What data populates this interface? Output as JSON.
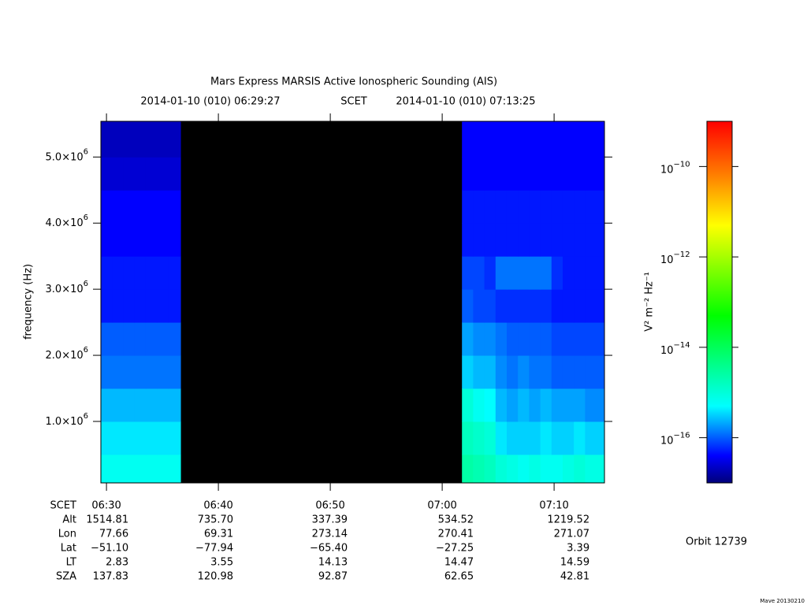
{
  "chart_data": {
    "type": "spectrogram",
    "title": "Mars Express MARSIS Active Ionospheric Sounding (AIS)",
    "subtitle": [
      "2014-01-10 (010) 06:29:27",
      "SCET",
      "2014-01-10 (010) 07:13:25"
    ],
    "y_label": "frequency (Hz)",
    "colorbar_label": "V² m⁻² Hz⁻¹",
    "orbit": "Orbit 12739",
    "footer": "Mave 20130210",
    "xlim": [
      23370,
      26070
    ],
    "xticks": [
      {
        "value": 23400,
        "label": "06:30"
      },
      {
        "value": 24000,
        "label": "06:40"
      },
      {
        "value": 24600,
        "label": "06:50"
      },
      {
        "value": 25200,
        "label": "07:00"
      },
      {
        "value": 25800,
        "label": "07:10"
      }
    ],
    "ylim": [
      70000,
      5540000
    ],
    "yticks": [
      {
        "value": 1000000,
        "label": "1.0×10",
        "exponent": "6"
      },
      {
        "value": 2000000,
        "label": "2.0×10",
        "exponent": "6"
      },
      {
        "value": 3000000,
        "label": "3.0×10",
        "exponent": "6"
      },
      {
        "value": 4000000,
        "label": "4.0×10",
        "exponent": "6"
      },
      {
        "value": 5000000,
        "label": "5.0×10",
        "exponent": "6"
      }
    ],
    "clim": [
      -17,
      -9
    ],
    "cticks": [
      {
        "value": -10,
        "label": "10",
        "exponent": "−10"
      },
      {
        "value": -12,
        "label": "10",
        "exponent": "−12"
      },
      {
        "value": -14,
        "label": "10",
        "exponent": "−14"
      },
      {
        "value": -16,
        "label": "10",
        "exponent": "−16"
      }
    ],
    "colormap": [
      {
        "value": -17,
        "color": "#00007a"
      },
      {
        "value": -16.4,
        "color": "#0000ff"
      },
      {
        "value": -15.3,
        "color": "#00ffff"
      },
      {
        "value": -13.3,
        "color": "#00ff00"
      },
      {
        "value": -11.3,
        "color": "#ffff00"
      },
      {
        "value": -10.2,
        "color": "#ff8000"
      },
      {
        "value": -9,
        "color": "#ff0000"
      }
    ],
    "x_edges": [
      23370,
      23430,
      23490,
      23550,
      23610,
      23670,
      23730,
      23797,
      25306,
      25366,
      25426,
      25486,
      25546,
      25606,
      25666,
      25726,
      25786,
      25846,
      25906,
      25966,
      26070
    ],
    "y_edges": [
      70000,
      500000,
      1000000,
      1500000,
      2000000,
      2500000,
      3000000,
      3500000,
      4000000,
      4500000,
      5000000,
      5540000
    ],
    "values": [
      [
        -15.2,
        -15.2,
        -15.2,
        -15.2,
        -15.2,
        -15.2,
        -15.2,
        null,
        -14.6,
        -14.7,
        -14.8,
        -15.0,
        -15.1,
        -15.2,
        -15.1,
        -15.2,
        -15.2,
        -15.1,
        -15.0,
        -15.1
      ],
      [
        -15.4,
        -15.4,
        -15.4,
        -15.4,
        -15.4,
        -15.4,
        -15.4,
        null,
        -14.8,
        -14.9,
        -15.0,
        -15.4,
        -15.5,
        -15.5,
        -15.5,
        -15.4,
        -15.5,
        -15.5,
        -15.4,
        -15.5
      ],
      [
        -15.6,
        -15.6,
        -15.6,
        -15.6,
        -15.6,
        -15.6,
        -15.6,
        null,
        -15.0,
        -15.2,
        -15.3,
        -15.6,
        -15.7,
        -15.6,
        -15.7,
        -15.6,
        -15.7,
        -15.7,
        -15.7,
        -15.8
      ],
      [
        -15.9,
        -15.9,
        -15.9,
        -15.9,
        -15.9,
        -15.9,
        -15.9,
        null,
        -15.5,
        -15.6,
        -15.6,
        -15.8,
        -15.9,
        -15.8,
        -15.9,
        -15.9,
        -16.0,
        -16.0,
        -16.0,
        -16.0
      ],
      [
        -16.0,
        -16.0,
        -16.0,
        -16.0,
        -16.0,
        -16.0,
        -16.0,
        null,
        -15.7,
        -15.8,
        -15.8,
        -15.9,
        -16.0,
        -16.0,
        -16.0,
        -16.0,
        -16.1,
        -16.1,
        -16.1,
        -16.1
      ],
      [
        -16.3,
        -16.3,
        -16.3,
        -16.3,
        -16.3,
        -16.3,
        -16.3,
        null,
        -16.0,
        -16.1,
        -16.1,
        -16.2,
        -16.2,
        -16.2,
        -16.2,
        -16.2,
        -16.3,
        -16.3,
        -16.3,
        -16.3
      ],
      [
        -16.3,
        -16.3,
        -16.3,
        -16.3,
        -16.3,
        -16.3,
        -16.3,
        null,
        -16.1,
        -16.1,
        -16.2,
        -15.9,
        -15.9,
        -15.9,
        -15.9,
        -15.9,
        -16.2,
        -16.3,
        -16.3,
        -16.3
      ],
      [
        -16.4,
        -16.4,
        -16.4,
        -16.4,
        -16.4,
        -16.4,
        -16.4,
        null,
        -16.3,
        -16.3,
        -16.3,
        -16.3,
        -16.3,
        -16.3,
        -16.3,
        -16.3,
        -16.3,
        -16.3,
        -16.3,
        -16.3
      ],
      [
        -16.4,
        -16.4,
        -16.4,
        -16.4,
        -16.4,
        -16.4,
        -16.4,
        null,
        -16.3,
        -16.3,
        -16.3,
        -16.3,
        -16.3,
        -16.3,
        -16.3,
        -16.3,
        -16.3,
        -16.3,
        -16.3,
        -16.3
      ],
      [
        -16.6,
        -16.6,
        -16.6,
        -16.6,
        -16.6,
        -16.6,
        -16.6,
        null,
        -16.4,
        -16.4,
        -16.4,
        -16.4,
        -16.4,
        -16.4,
        -16.4,
        -16.4,
        -16.4,
        -16.4,
        -16.4,
        -16.4
      ],
      [
        -16.7,
        -16.7,
        -16.7,
        -16.7,
        -16.7,
        -16.7,
        -16.7,
        null,
        -16.4,
        -16.4,
        -16.4,
        -16.4,
        -16.4,
        -16.4,
        -16.4,
        -16.4,
        -16.4,
        -16.4,
        -16.4,
        -16.4
      ]
    ],
    "time_label": "SCET",
    "ephemeris": [
      {
        "name": "Alt",
        "values": [
          "1514.81",
          "735.70",
          "337.39",
          "534.52",
          "1219.52"
        ]
      },
      {
        "name": "Lon",
        "values": [
          "77.66",
          "69.31",
          "273.14",
          "270.41",
          "271.07"
        ]
      },
      {
        "name": "Lat",
        "values": [
          "−51.10",
          "−77.94",
          "−65.40",
          "−27.25",
          "3.39"
        ]
      },
      {
        "name": "LT",
        "values": [
          "2.83",
          "3.55",
          "14.13",
          "14.47",
          "14.59"
        ]
      },
      {
        "name": "SZA",
        "values": [
          "137.83",
          "120.98",
          "92.87",
          "62.65",
          "42.81"
        ]
      }
    ]
  }
}
